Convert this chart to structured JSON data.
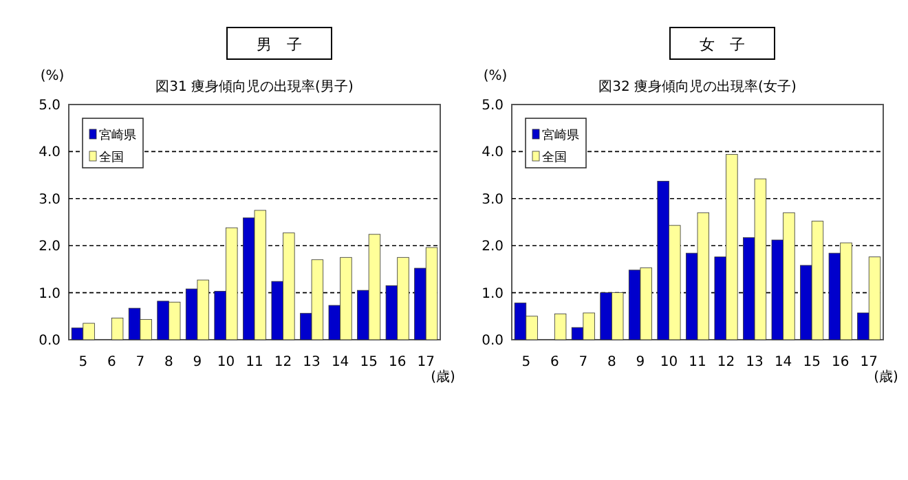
{
  "chart_data": [
    {
      "type": "bar",
      "subtitle": "男　子",
      "title": "図31  痩身傾向児の出現率(男子)",
      "ylabel": "(%)",
      "xlabel": "(歳)",
      "categories": [
        "5",
        "6",
        "7",
        "8",
        "9",
        "10",
        "11",
        "12",
        "13",
        "14",
        "15",
        "16",
        "17"
      ],
      "series": [
        {
          "name": "宮崎県",
          "color": "#0000cc",
          "values": [
            0.25,
            0,
            0.67,
            0.82,
            1.08,
            1.03,
            2.59,
            1.24,
            0.56,
            0.73,
            1.05,
            1.15,
            1.52
          ]
        },
        {
          "name": "全国",
          "color": "#ffff99",
          "values": [
            0.35,
            0.46,
            0.43,
            0.8,
            1.27,
            2.38,
            2.75,
            2.27,
            1.7,
            1.75,
            2.24,
            1.75,
            1.96
          ]
        }
      ],
      "ylim": [
        0,
        5
      ],
      "yticks": [
        {
          "value": 0,
          "label": "0.0"
        },
        {
          "value": 1,
          "label": "1.0"
        },
        {
          "value": 2,
          "label": "2.0"
        },
        {
          "value": 3,
          "label": "3.0"
        },
        {
          "value": 4,
          "label": "4.0"
        },
        {
          "value": 5,
          "label": "5.0"
        }
      ],
      "grid": "y",
      "line_style": "dashed",
      "legend": "top left"
    },
    {
      "type": "bar",
      "subtitle": "女　子",
      "title": "図32  痩身傾向児の出現率(女子)",
      "ylabel": "(%)",
      "xlabel": "(歳)",
      "categories": [
        "5",
        "6",
        "7",
        "8",
        "9",
        "10",
        "11",
        "12",
        "13",
        "14",
        "15",
        "16",
        "17"
      ],
      "series": [
        {
          "name": "宮崎県",
          "color": "#0000cc",
          "values": [
            0.78,
            0,
            0.26,
            1.0,
            1.48,
            3.37,
            1.84,
            1.76,
            2.17,
            2.12,
            1.58,
            1.84,
            0.57
          ]
        },
        {
          "name": "全国",
          "color": "#ffff99",
          "values": [
            0.5,
            0.55,
            0.57,
            1.0,
            1.53,
            2.43,
            2.7,
            3.94,
            3.42,
            2.7,
            2.52,
            2.06,
            1.76
          ]
        }
      ],
      "ylim": [
        0,
        5
      ],
      "yticks": [
        {
          "value": 0,
          "label": "0.0"
        },
        {
          "value": 1,
          "label": "1.0"
        },
        {
          "value": 2,
          "label": "2.0"
        },
        {
          "value": 3,
          "label": "3.0"
        },
        {
          "value": 4,
          "label": "4.0"
        },
        {
          "value": 5,
          "label": "5.0"
        }
      ],
      "grid": "y",
      "line_style": "dashed",
      "legend": "top left"
    }
  ]
}
